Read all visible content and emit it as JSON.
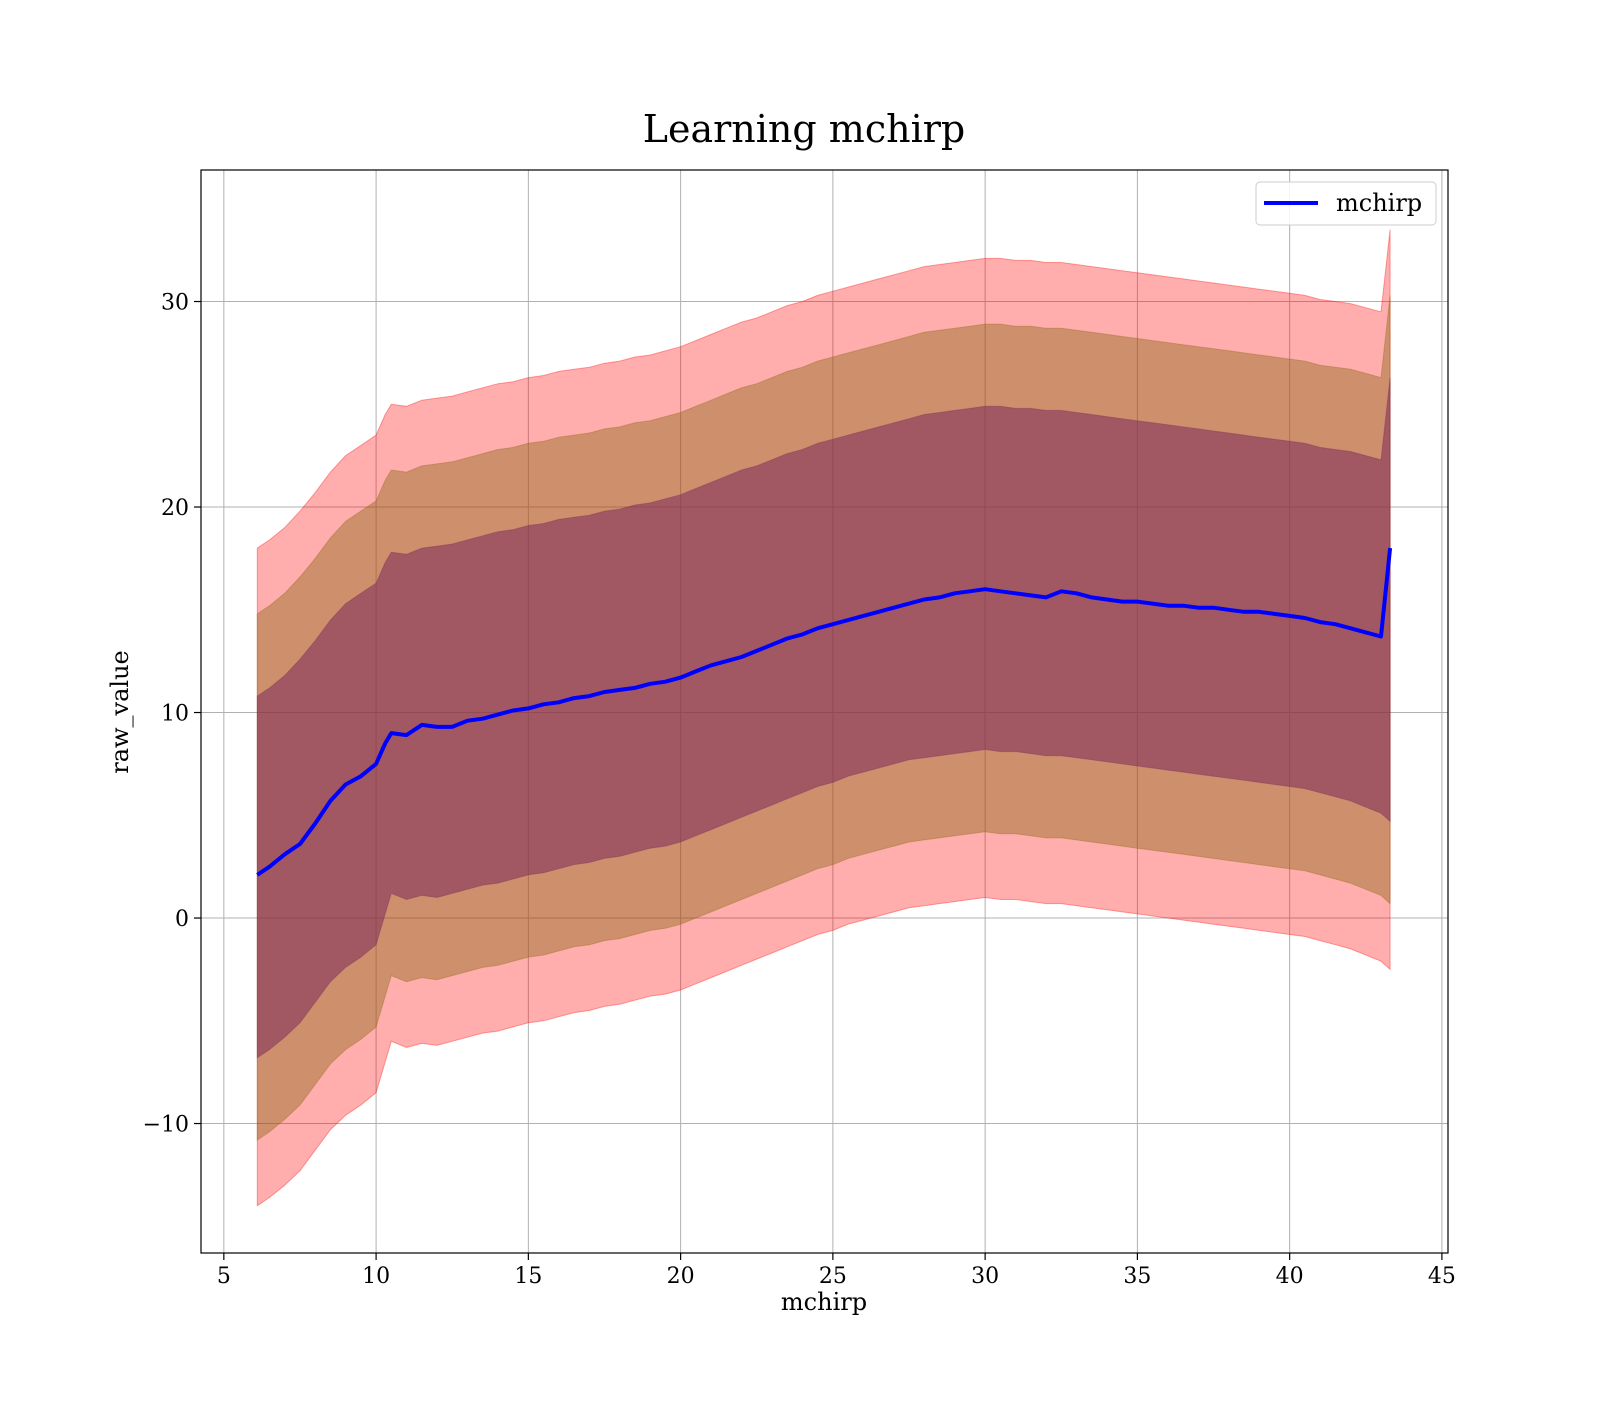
{
  "chart_data": {
    "type": "line",
    "title": "Learning mchirp",
    "xlabel": "mchirp",
    "ylabel": "raw_value",
    "xlim": [
      4.25,
      45.2
    ],
    "ylim": [
      -16.3,
      36.4
    ],
    "x_ticks": [
      5,
      10,
      15,
      20,
      25,
      30,
      35,
      40,
      45
    ],
    "x_tick_labels": [
      "5",
      "10",
      "15",
      "20",
      "25",
      "30",
      "35",
      "40",
      "45"
    ],
    "y_ticks": [
      -10,
      0,
      10,
      20,
      30
    ],
    "y_tick_labels": [
      "−10",
      "0",
      "10",
      "20",
      "30"
    ],
    "grid": true,
    "legend": {
      "position": "top-right",
      "entries": [
        "mchirp"
      ]
    },
    "colors": {
      "line": "#0000ff",
      "band_outer": "#ff0000",
      "band_middle": "#8b6914",
      "band_inner": "#7b2a5c",
      "grid": "#b0b0b0"
    },
    "series": [
      {
        "name": "mchirp",
        "x": [
          6.1,
          6.5,
          7.0,
          7.5,
          8.0,
          8.5,
          9.0,
          9.5,
          10.0,
          10.3,
          10.5,
          11.0,
          11.5,
          12.0,
          12.5,
          13.0,
          13.5,
          14.0,
          14.5,
          15.0,
          15.5,
          16.0,
          16.5,
          17.0,
          17.5,
          18.0,
          18.5,
          19.0,
          19.5,
          20.0,
          20.5,
          21.0,
          21.5,
          22.0,
          22.5,
          23.0,
          23.5,
          24.0,
          24.5,
          25.0,
          25.5,
          26.0,
          26.5,
          27.0,
          27.5,
          28.0,
          28.5,
          29.0,
          29.5,
          30.0,
          30.5,
          31.0,
          31.5,
          32.0,
          32.5,
          33.0,
          33.5,
          34.0,
          34.5,
          35.0,
          35.5,
          36.0,
          36.5,
          37.0,
          37.5,
          38.0,
          38.5,
          39.0,
          39.5,
          40.0,
          40.5,
          41.0,
          41.5,
          42.0,
          42.5,
          43.0,
          43.3
        ],
        "y": [
          2.1,
          2.5,
          3.1,
          3.6,
          4.6,
          5.7,
          6.5,
          6.9,
          7.5,
          8.5,
          9.0,
          8.9,
          9.4,
          9.3,
          9.3,
          9.6,
          9.7,
          9.9,
          10.1,
          10.2,
          10.4,
          10.5,
          10.7,
          10.8,
          11.0,
          11.1,
          11.2,
          11.4,
          11.5,
          11.7,
          12.0,
          12.3,
          12.5,
          12.7,
          13.0,
          13.3,
          13.6,
          13.8,
          14.1,
          14.3,
          14.5,
          14.7,
          14.9,
          15.1,
          15.3,
          15.5,
          15.6,
          15.8,
          15.9,
          16.0,
          15.9,
          15.8,
          15.7,
          15.6,
          15.9,
          15.8,
          15.6,
          15.5,
          15.4,
          15.4,
          15.3,
          15.2,
          15.2,
          15.1,
          15.1,
          15.0,
          14.9,
          14.9,
          14.8,
          14.7,
          14.6,
          14.4,
          14.3,
          14.1,
          13.9,
          13.7,
          18.0
        ]
      }
    ],
    "bands": [
      {
        "name": "outer",
        "lower": [
          -14.0,
          -13.6,
          -13.0,
          -12.3,
          -11.3,
          -10.3,
          -9.6,
          -9.1,
          -8.5,
          -7.0,
          -6.0,
          -6.3,
          -6.1,
          -6.2,
          -6.0,
          -5.8,
          -5.6,
          -5.5,
          -5.3,
          -5.1,
          -5.0,
          -4.8,
          -4.6,
          -4.5,
          -4.3,
          -4.2,
          -4.0,
          -3.8,
          -3.7,
          -3.5,
          -3.2,
          -2.9,
          -2.6,
          -2.3,
          -2.0,
          -1.7,
          -1.4,
          -1.1,
          -0.8,
          -0.6,
          -0.3,
          -0.1,
          0.1,
          0.3,
          0.5,
          0.6,
          0.7,
          0.8,
          0.9,
          1.0,
          0.9,
          0.9,
          0.8,
          0.7,
          0.7,
          0.6,
          0.5,
          0.4,
          0.3,
          0.2,
          0.1,
          0.0,
          -0.1,
          -0.2,
          -0.3,
          -0.4,
          -0.5,
          -0.6,
          -0.7,
          -0.8,
          -0.9,
          -1.1,
          -1.3,
          -1.5,
          -1.8,
          -2.1,
          -2.5
        ],
        "upper": [
          18.0,
          18.4,
          19.0,
          19.8,
          20.7,
          21.7,
          22.5,
          23.0,
          23.5,
          24.5,
          25.0,
          24.9,
          25.2,
          25.3,
          25.4,
          25.6,
          25.8,
          26.0,
          26.1,
          26.3,
          26.4,
          26.6,
          26.7,
          26.8,
          27.0,
          27.1,
          27.3,
          27.4,
          27.6,
          27.8,
          28.1,
          28.4,
          28.7,
          29.0,
          29.2,
          29.5,
          29.8,
          30.0,
          30.3,
          30.5,
          30.7,
          30.9,
          31.1,
          31.3,
          31.5,
          31.7,
          31.8,
          31.9,
          32.0,
          32.1,
          32.1,
          32.0,
          32.0,
          31.9,
          31.9,
          31.8,
          31.7,
          31.6,
          31.5,
          31.4,
          31.3,
          31.2,
          31.1,
          31.0,
          30.9,
          30.8,
          30.7,
          30.6,
          30.5,
          30.4,
          30.3,
          30.1,
          30.0,
          29.9,
          29.7,
          29.5,
          33.5
        ]
      },
      {
        "name": "middle",
        "lower": [
          -10.8,
          -10.4,
          -9.8,
          -9.1,
          -8.1,
          -7.1,
          -6.4,
          -5.9,
          -5.3,
          -3.8,
          -2.8,
          -3.1,
          -2.9,
          -3.0,
          -2.8,
          -2.6,
          -2.4,
          -2.3,
          -2.1,
          -1.9,
          -1.8,
          -1.6,
          -1.4,
          -1.3,
          -1.1,
          -1.0,
          -0.8,
          -0.6,
          -0.5,
          -0.3,
          0.0,
          0.3,
          0.6,
          0.9,
          1.2,
          1.5,
          1.8,
          2.1,
          2.4,
          2.6,
          2.9,
          3.1,
          3.3,
          3.5,
          3.7,
          3.8,
          3.9,
          4.0,
          4.1,
          4.2,
          4.1,
          4.1,
          4.0,
          3.9,
          3.9,
          3.8,
          3.7,
          3.6,
          3.5,
          3.4,
          3.3,
          3.2,
          3.1,
          3.0,
          2.9,
          2.8,
          2.7,
          2.6,
          2.5,
          2.4,
          2.3,
          2.1,
          1.9,
          1.7,
          1.4,
          1.1,
          0.7
        ],
        "upper": [
          14.8,
          15.2,
          15.8,
          16.6,
          17.5,
          18.5,
          19.3,
          19.8,
          20.3,
          21.3,
          21.8,
          21.7,
          22.0,
          22.1,
          22.2,
          22.4,
          22.6,
          22.8,
          22.9,
          23.1,
          23.2,
          23.4,
          23.5,
          23.6,
          23.8,
          23.9,
          24.1,
          24.2,
          24.4,
          24.6,
          24.9,
          25.2,
          25.5,
          25.8,
          26.0,
          26.3,
          26.6,
          26.8,
          27.1,
          27.3,
          27.5,
          27.7,
          27.9,
          28.1,
          28.3,
          28.5,
          28.6,
          28.7,
          28.8,
          28.9,
          28.9,
          28.8,
          28.8,
          28.7,
          28.7,
          28.6,
          28.5,
          28.4,
          28.3,
          28.2,
          28.1,
          28.0,
          27.9,
          27.8,
          27.7,
          27.6,
          27.5,
          27.4,
          27.3,
          27.2,
          27.1,
          26.9,
          26.8,
          26.7,
          26.5,
          26.3,
          30.3
        ]
      },
      {
        "name": "inner",
        "lower": [
          -6.8,
          -6.4,
          -5.8,
          -5.1,
          -4.1,
          -3.1,
          -2.4,
          -1.9,
          -1.3,
          0.2,
          1.2,
          0.9,
          1.1,
          1.0,
          1.2,
          1.4,
          1.6,
          1.7,
          1.9,
          2.1,
          2.2,
          2.4,
          2.6,
          2.7,
          2.9,
          3.0,
          3.2,
          3.4,
          3.5,
          3.7,
          4.0,
          4.3,
          4.6,
          4.9,
          5.2,
          5.5,
          5.8,
          6.1,
          6.4,
          6.6,
          6.9,
          7.1,
          7.3,
          7.5,
          7.7,
          7.8,
          7.9,
          8.0,
          8.1,
          8.2,
          8.1,
          8.1,
          8.0,
          7.9,
          7.9,
          7.8,
          7.7,
          7.6,
          7.5,
          7.4,
          7.3,
          7.2,
          7.1,
          7.0,
          6.9,
          6.8,
          6.7,
          6.6,
          6.5,
          6.4,
          6.3,
          6.1,
          5.9,
          5.7,
          5.4,
          5.1,
          4.7
        ],
        "upper": [
          10.8,
          11.2,
          11.8,
          12.6,
          13.5,
          14.5,
          15.3,
          15.8,
          16.3,
          17.3,
          17.8,
          17.7,
          18.0,
          18.1,
          18.2,
          18.4,
          18.6,
          18.8,
          18.9,
          19.1,
          19.2,
          19.4,
          19.5,
          19.6,
          19.8,
          19.9,
          20.1,
          20.2,
          20.4,
          20.6,
          20.9,
          21.2,
          21.5,
          21.8,
          22.0,
          22.3,
          22.6,
          22.8,
          23.1,
          23.3,
          23.5,
          23.7,
          23.9,
          24.1,
          24.3,
          24.5,
          24.6,
          24.7,
          24.8,
          24.9,
          24.9,
          24.8,
          24.8,
          24.7,
          24.7,
          24.6,
          24.5,
          24.4,
          24.3,
          24.2,
          24.1,
          24.0,
          23.9,
          23.8,
          23.7,
          23.6,
          23.5,
          23.4,
          23.3,
          23.2,
          23.1,
          22.9,
          22.8,
          22.7,
          22.5,
          22.3,
          26.3
        ]
      }
    ]
  }
}
